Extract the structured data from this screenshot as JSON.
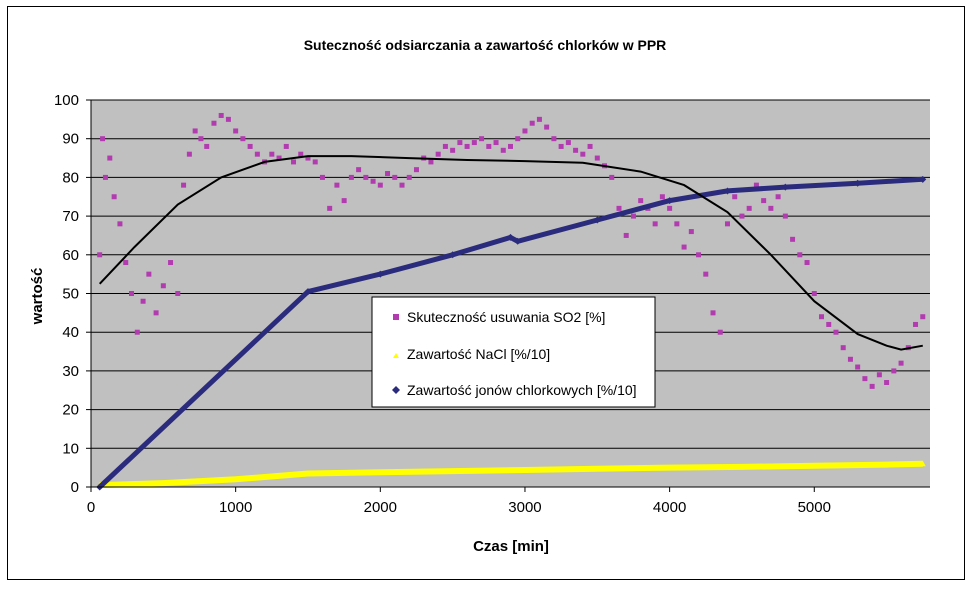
{
  "chart_data": {
    "type": "scatter",
    "title": "Suteczność odsiarczania a zawartość chlorków w PPR",
    "xlabel": "Czas [min]",
    "ylabel": "wartość",
    "xlim": [
      0,
      5800
    ],
    "ylim": [
      0,
      100
    ],
    "x_ticks": [
      "0",
      "1000",
      "2000",
      "3000",
      "4000",
      "5000"
    ],
    "y_ticks": [
      "0",
      "10",
      "20",
      "30",
      "40",
      "50",
      "60",
      "70",
      "80",
      "90",
      "100"
    ],
    "grid": "horizontal",
    "plot_background": "#c0c0c0",
    "legend_position": "center",
    "series": [
      {
        "name": "Skuteczność usuwania SO2 [%]",
        "marker": "square",
        "color": "#b23bb0",
        "points": [
          [
            60,
            60
          ],
          [
            80,
            90
          ],
          [
            100,
            80
          ],
          [
            130,
            85
          ],
          [
            160,
            75
          ],
          [
            200,
            68
          ],
          [
            240,
            58
          ],
          [
            280,
            50
          ],
          [
            320,
            40
          ],
          [
            360,
            48
          ],
          [
            400,
            55
          ],
          [
            450,
            45
          ],
          [
            500,
            52
          ],
          [
            550,
            58
          ],
          [
            600,
            50
          ],
          [
            640,
            78
          ],
          [
            680,
            86
          ],
          [
            720,
            92
          ],
          [
            760,
            90
          ],
          [
            800,
            88
          ],
          [
            850,
            94
          ],
          [
            900,
            96
          ],
          [
            950,
            95
          ],
          [
            1000,
            92
          ],
          [
            1050,
            90
          ],
          [
            1100,
            88
          ],
          [
            1150,
            86
          ],
          [
            1200,
            84
          ],
          [
            1250,
            86
          ],
          [
            1300,
            85
          ],
          [
            1350,
            88
          ],
          [
            1400,
            84
          ],
          [
            1450,
            86
          ],
          [
            1500,
            85
          ],
          [
            1550,
            84
          ],
          [
            1600,
            80
          ],
          [
            1650,
            72
          ],
          [
            1700,
            78
          ],
          [
            1750,
            74
          ],
          [
            1800,
            80
          ],
          [
            1850,
            82
          ],
          [
            1900,
            80
          ],
          [
            1950,
            79
          ],
          [
            2000,
            78
          ],
          [
            2050,
            81
          ],
          [
            2100,
            80
          ],
          [
            2150,
            78
          ],
          [
            2200,
            80
          ],
          [
            2250,
            82
          ],
          [
            2300,
            85
          ],
          [
            2350,
            84
          ],
          [
            2400,
            86
          ],
          [
            2450,
            88
          ],
          [
            2500,
            87
          ],
          [
            2550,
            89
          ],
          [
            2600,
            88
          ],
          [
            2650,
            89
          ],
          [
            2700,
            90
          ],
          [
            2750,
            88
          ],
          [
            2800,
            89
          ],
          [
            2850,
            87
          ],
          [
            2900,
            88
          ],
          [
            2950,
            90
          ],
          [
            3000,
            92
          ],
          [
            3050,
            94
          ],
          [
            3100,
            95
          ],
          [
            3150,
            93
          ],
          [
            3200,
            90
          ],
          [
            3250,
            88
          ],
          [
            3300,
            89
          ],
          [
            3350,
            87
          ],
          [
            3400,
            86
          ],
          [
            3450,
            88
          ],
          [
            3500,
            85
          ],
          [
            3550,
            83
          ],
          [
            3600,
            80
          ],
          [
            3650,
            72
          ],
          [
            3700,
            65
          ],
          [
            3750,
            70
          ],
          [
            3800,
            74
          ],
          [
            3850,
            72
          ],
          [
            3900,
            68
          ],
          [
            3950,
            75
          ],
          [
            4000,
            72
          ],
          [
            4050,
            68
          ],
          [
            4100,
            62
          ],
          [
            4150,
            66
          ],
          [
            4200,
            60
          ],
          [
            4250,
            55
          ],
          [
            4300,
            45
          ],
          [
            4350,
            40
          ],
          [
            4400,
            68
          ],
          [
            4450,
            75
          ],
          [
            4500,
            70
          ],
          [
            4550,
            72
          ],
          [
            4600,
            78
          ],
          [
            4650,
            74
          ],
          [
            4700,
            72
          ],
          [
            4750,
            75
          ],
          [
            4800,
            70
          ],
          [
            4850,
            64
          ],
          [
            4900,
            60
          ],
          [
            4950,
            58
          ],
          [
            5000,
            50
          ],
          [
            5050,
            44
          ],
          [
            5100,
            42
          ],
          [
            5150,
            40
          ],
          [
            5200,
            36
          ],
          [
            5250,
            33
          ],
          [
            5300,
            31
          ],
          [
            5350,
            28
          ],
          [
            5400,
            26
          ],
          [
            5450,
            29
          ],
          [
            5500,
            27
          ],
          [
            5550,
            30
          ],
          [
            5600,
            32
          ],
          [
            5650,
            36
          ],
          [
            5700,
            42
          ],
          [
            5750,
            44
          ]
        ]
      },
      {
        "name": "Zawartość NaCl [%/10]",
        "marker": "triangle",
        "color": "#ffff00",
        "points": [
          [
            60,
            0.5
          ],
          [
            500,
            1
          ],
          [
            1000,
            2
          ],
          [
            1500,
            3.5
          ],
          [
            2000,
            3.8
          ],
          [
            2500,
            4.1
          ],
          [
            3000,
            4.4
          ],
          [
            3500,
            4.7
          ],
          [
            4000,
            5
          ],
          [
            4500,
            5.2
          ],
          [
            5000,
            5.5
          ],
          [
            5500,
            5.8
          ],
          [
            5750,
            6
          ]
        ]
      },
      {
        "name": "Zawartość jonów chlorkowych [%/10]",
        "marker": "diamond",
        "color": "#2b2b7d",
        "points": [
          [
            60,
            0
          ],
          [
            1500,
            50.5
          ],
          [
            2000,
            55
          ],
          [
            2500,
            60
          ],
          [
            2900,
            64.5
          ],
          [
            2950,
            63.5
          ],
          [
            3500,
            69
          ],
          [
            4000,
            74
          ],
          [
            4400,
            76.5
          ],
          [
            4800,
            77.5
          ],
          [
            5300,
            78.5
          ],
          [
            5750,
            79.5
          ]
        ]
      },
      {
        "marker": "line",
        "color": "#000000",
        "points": [
          [
            60,
            52.5
          ],
          [
            300,
            62
          ],
          [
            600,
            73
          ],
          [
            900,
            80
          ],
          [
            1200,
            84
          ],
          [
            1500,
            85.5
          ],
          [
            1800,
            85.5
          ],
          [
            2200,
            85
          ],
          [
            2600,
            84.5
          ],
          [
            3000,
            84.2
          ],
          [
            3400,
            83.8
          ],
          [
            3800,
            81.5
          ],
          [
            4100,
            78
          ],
          [
            4400,
            71
          ],
          [
            4700,
            60
          ],
          [
            5000,
            48
          ],
          [
            5300,
            39.5
          ],
          [
            5500,
            36.5
          ],
          [
            5600,
            35.5
          ],
          [
            5750,
            36.5
          ]
        ]
      }
    ]
  }
}
